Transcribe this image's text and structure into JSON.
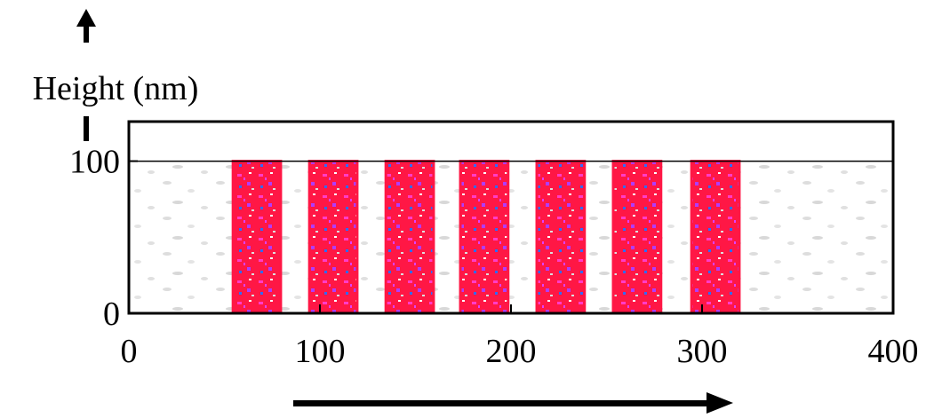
{
  "chart_data": {
    "type": "stripes",
    "y_label": "Height (nm)",
    "x": [
      67,
      107,
      147,
      186,
      226,
      266,
      307
    ],
    "values": [
      100,
      100,
      100,
      100,
      100,
      100,
      100
    ],
    "stripe_width": 25,
    "color": "#ff1745",
    "hline": 100,
    "xlim": [
      0,
      400
    ],
    "xticks": [
      0,
      100,
      200,
      300,
      400
    ],
    "ylim": [
      0,
      126
    ],
    "yticks": [
      0,
      100
    ]
  }
}
